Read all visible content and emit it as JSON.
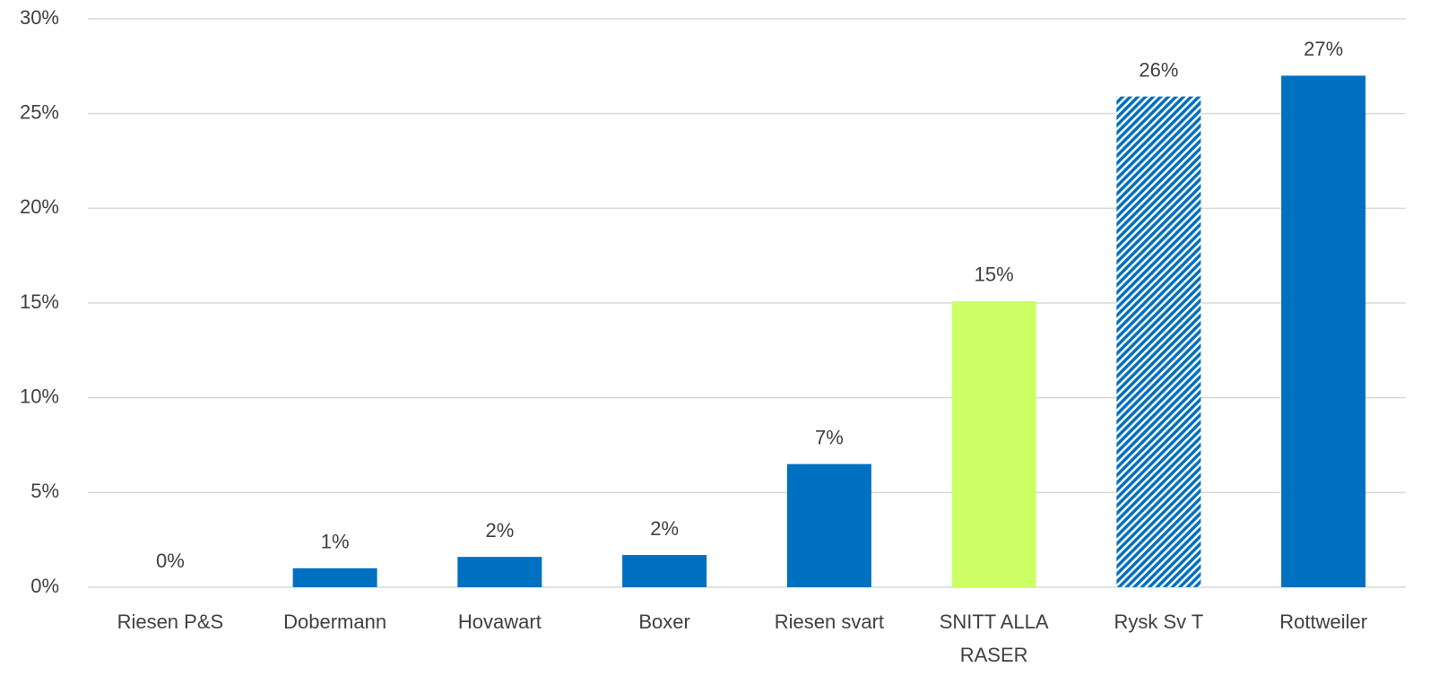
{
  "chart_data": {
    "type": "bar",
    "categories": [
      "Riesen P&S",
      "Dobermann",
      "Hovawart",
      "Boxer",
      "Riesen svart",
      "SNITT ALLA RASER",
      "Rysk Sv T",
      "Rottweiler"
    ],
    "values": [
      0,
      1.0,
      1.6,
      1.7,
      6.5,
      15.1,
      25.9,
      27.0
    ],
    "value_labels": [
      "0%",
      "1%",
      "2%",
      "2%",
      "7%",
      "15%",
      "26%",
      "27%"
    ],
    "colors": [
      "#0070c0",
      "#0070c0",
      "#0070c0",
      "#0070c0",
      "#0070c0",
      "#ccff66",
      "#0070c0",
      "#0070c0"
    ],
    "hatch": [
      false,
      false,
      false,
      false,
      false,
      false,
      true,
      false
    ],
    "ylim": [
      0,
      30
    ],
    "yticks": [
      {
        "value": 0,
        "label": "0%"
      },
      {
        "value": 5,
        "label": "5%"
      },
      {
        "value": 10,
        "label": "10%"
      },
      {
        "value": 15,
        "label": "15%"
      },
      {
        "value": 20,
        "label": "20%"
      },
      {
        "value": 25,
        "label": "25%"
      },
      {
        "value": 30,
        "label": "30%"
      }
    ],
    "grid": true
  }
}
